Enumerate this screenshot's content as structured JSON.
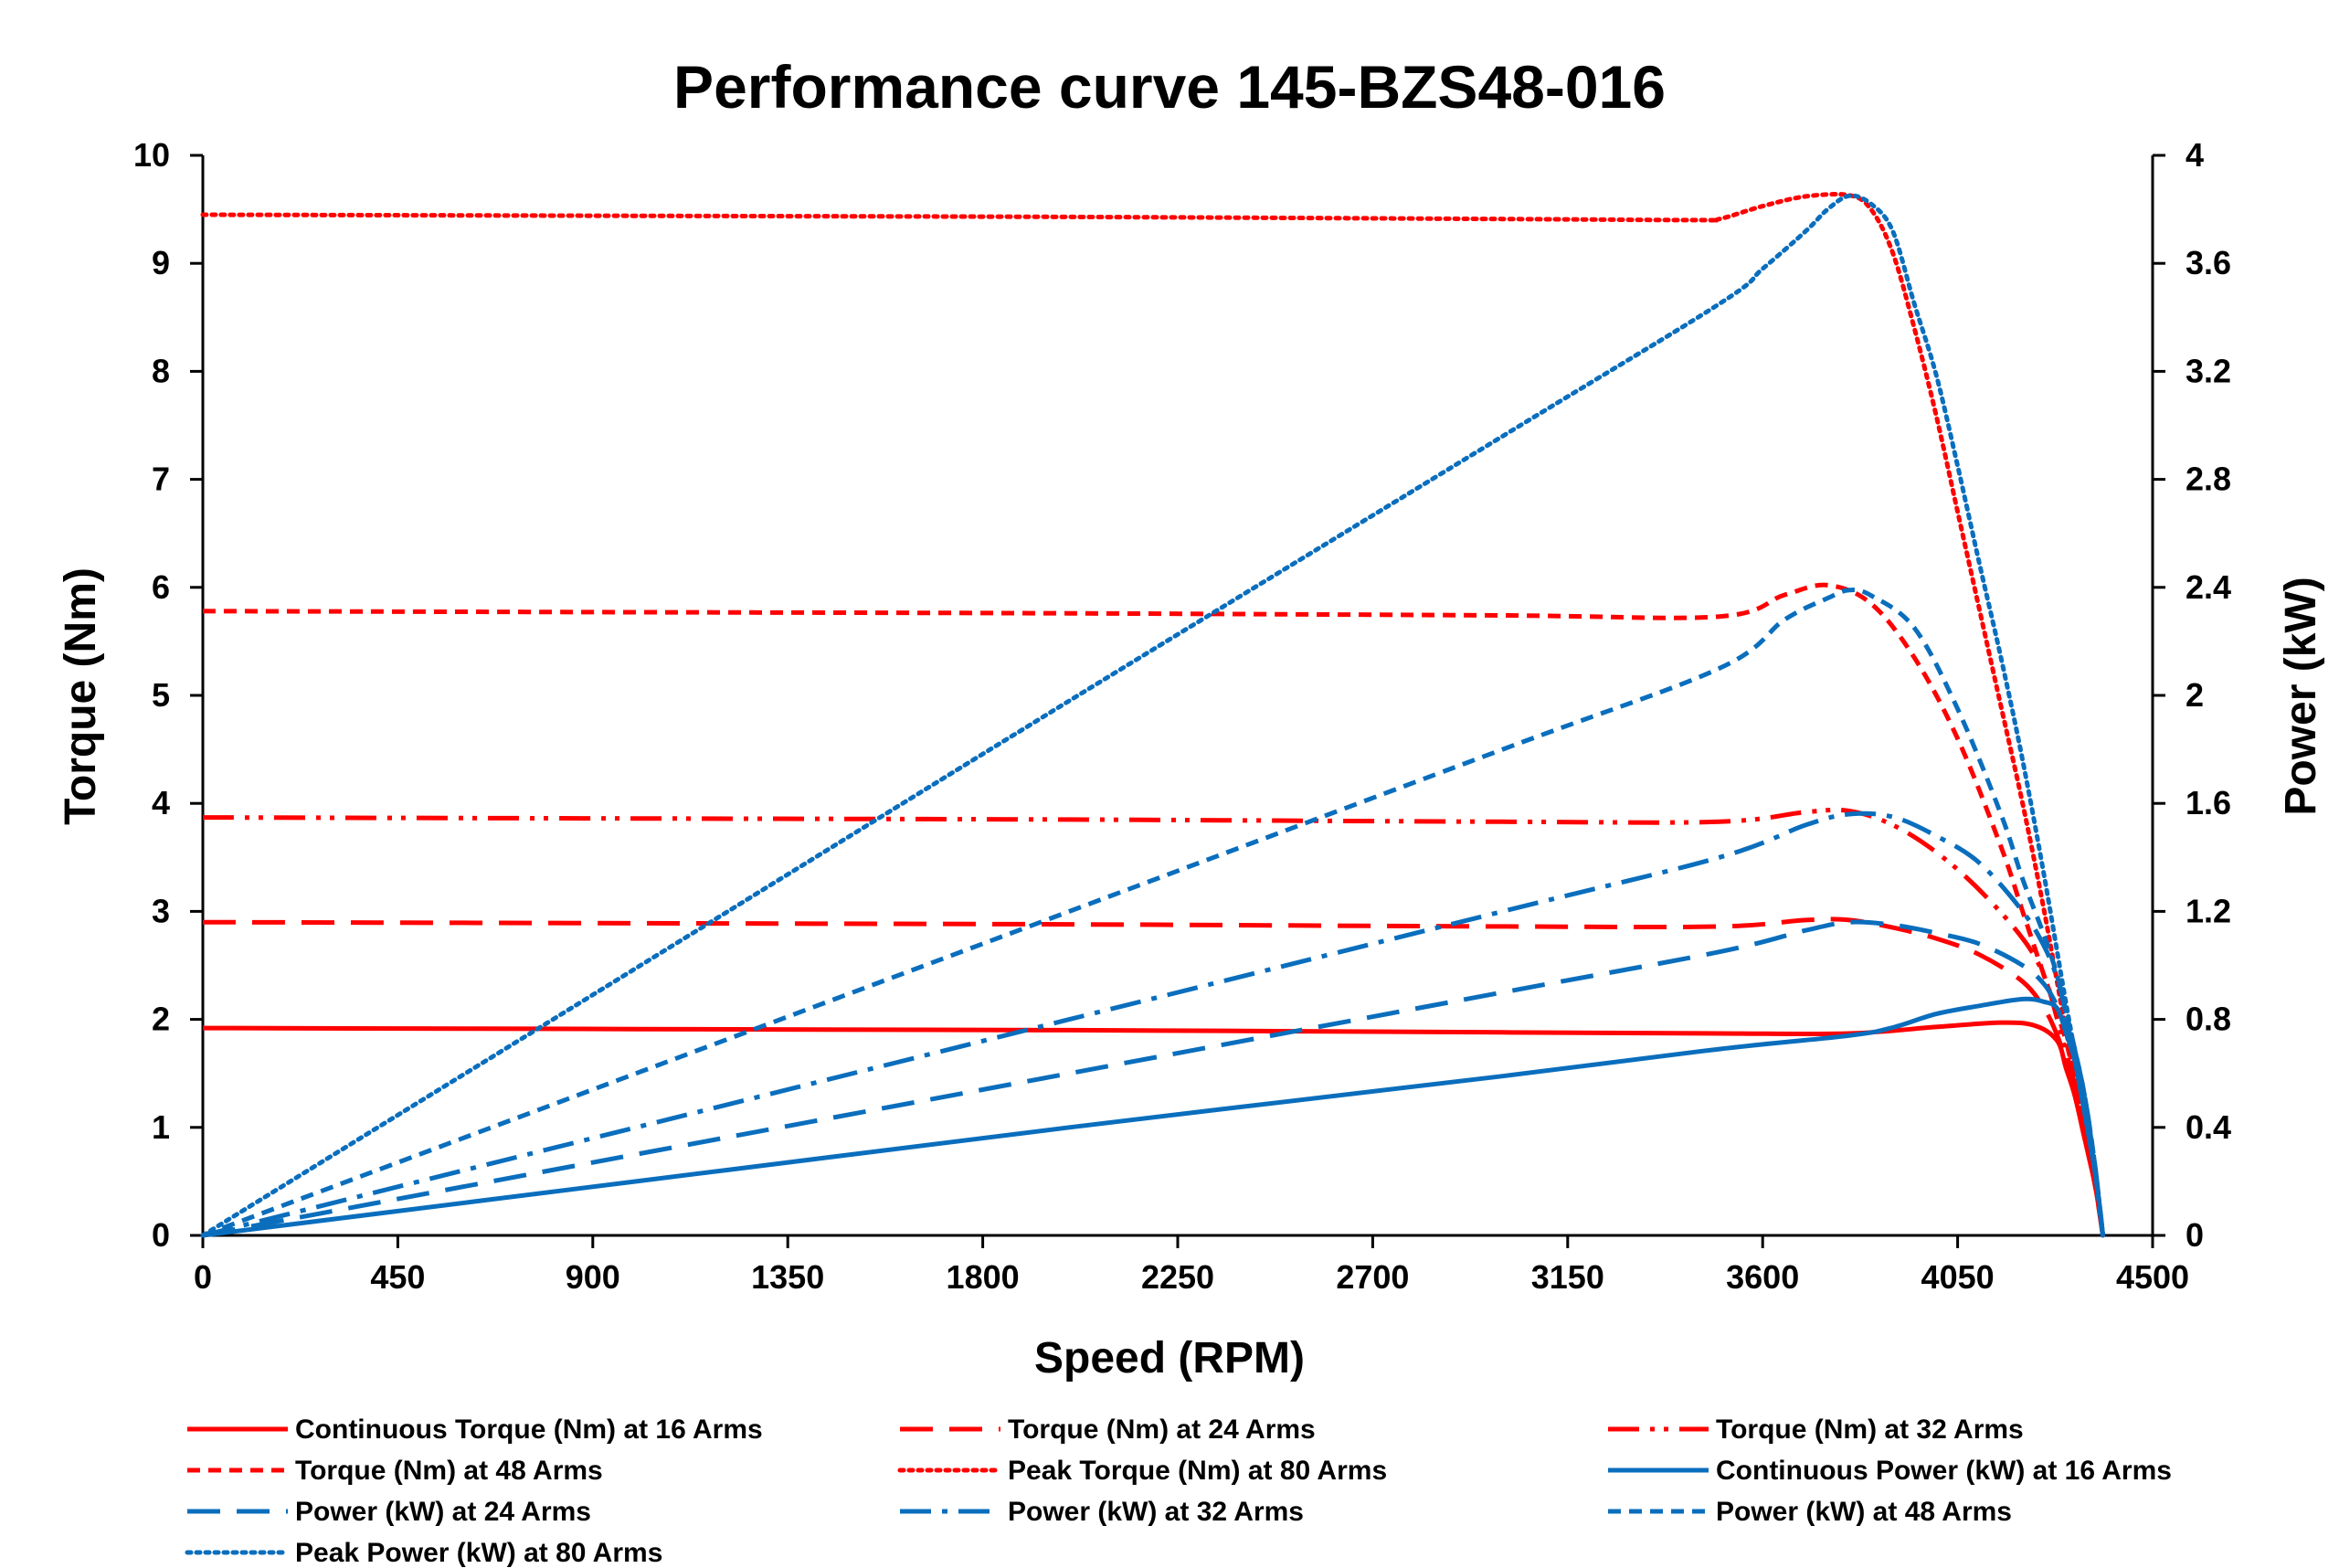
{
  "chart_data": {
    "type": "line",
    "title": "Performance curve 145-BZS48-016",
    "xlabel": "Speed (RPM)",
    "ylabel": "Torque (Nm)",
    "y2label": "Power (kW)",
    "xlim": [
      0,
      4500
    ],
    "ylim": [
      0,
      10
    ],
    "y2lim": [
      0,
      4
    ],
    "xticks": [
      "0",
      "450",
      "900",
      "1350",
      "1800",
      "2250",
      "2700",
      "3150",
      "3600",
      "4050",
      "4500"
    ],
    "yticks": [
      "0",
      "1",
      "2",
      "3",
      "4",
      "5",
      "6",
      "7",
      "8",
      "9",
      "10"
    ],
    "y2ticks": [
      "0",
      "0.4",
      "0.8",
      "1.2",
      "1.6",
      "2",
      "2.4",
      "2.8",
      "3.2",
      "3.6",
      "4"
    ],
    "colors": {
      "torque": "#ff0000",
      "power": "#0a6ebd"
    },
    "legend_position": "bottom",
    "series": [
      {
        "name": "Continuous Torque (Nm) at 16 Arms",
        "axis": "left",
        "color": "torque",
        "style": "solid",
        "x": [
          0,
          1000,
          2000,
          3000,
          3500,
          3800,
          4000,
          4150,
          4230,
          4280,
          4300,
          4320,
          4340,
          4360,
          4370,
          4380,
          4385
        ],
        "y": [
          1.92,
          1.91,
          1.9,
          1.88,
          1.87,
          1.87,
          1.93,
          1.97,
          1.94,
          1.8,
          1.55,
          1.3,
          0.95,
          0.6,
          0.4,
          0.15,
          0
        ]
      },
      {
        "name": "Torque (Nm) at 24 Arms",
        "axis": "left",
        "color": "torque",
        "style": "dash-long",
        "x": [
          0,
          1000,
          2000,
          3000,
          3500,
          3700,
          3800,
          3900,
          4000,
          4100,
          4200,
          4250,
          4280,
          4300,
          4330,
          4350,
          4370,
          4385
        ],
        "y": [
          2.9,
          2.89,
          2.88,
          2.86,
          2.86,
          2.92,
          2.92,
          2.85,
          2.75,
          2.6,
          2.35,
          2.1,
          1.85,
          1.6,
          1.2,
          0.85,
          0.4,
          0
        ]
      },
      {
        "name": "Torque (Nm) at 32 Arms",
        "axis": "left",
        "color": "torque",
        "style": "dash-dot-dot",
        "x": [
          0,
          1000,
          2000,
          3000,
          3500,
          3700,
          3800,
          3900,
          4000,
          4100,
          4200,
          4250,
          4280,
          4300,
          4330,
          4350,
          4370,
          4385
        ],
        "y": [
          3.87,
          3.86,
          3.85,
          3.83,
          3.83,
          3.92,
          3.93,
          3.8,
          3.55,
          3.2,
          2.75,
          2.4,
          2.0,
          1.7,
          1.25,
          0.9,
          0.45,
          0
        ]
      },
      {
        "name": "Torque (Nm) at 48 Arms",
        "axis": "left",
        "color": "torque",
        "style": "dash-short",
        "x": [
          0,
          1000,
          2000,
          3000,
          3500,
          3650,
          3750,
          3850,
          3950,
          4050,
          4150,
          4200,
          4250,
          4280,
          4300,
          4330,
          4350,
          4370,
          4385
        ],
        "y": [
          5.78,
          5.77,
          5.76,
          5.74,
          5.73,
          5.93,
          6.02,
          5.85,
          5.35,
          4.6,
          3.6,
          3.0,
          2.4,
          2.05,
          1.8,
          1.3,
          0.95,
          0.45,
          0
        ]
      },
      {
        "name": "Peak Torque (Nm) at 80 Arms",
        "axis": "left",
        "color": "torque",
        "style": "dot",
        "x": [
          0,
          1000,
          2000,
          3000,
          3450,
          3500,
          3600,
          3700,
          3800,
          3850,
          3900,
          3950,
          4000,
          4050,
          4100,
          4150,
          4200,
          4250,
          4300,
          4330,
          4350,
          4370,
          4385
        ],
        "y": [
          9.45,
          9.44,
          9.43,
          9.41,
          9.4,
          9.41,
          9.53,
          9.62,
          9.63,
          9.5,
          9.1,
          8.4,
          7.6,
          6.7,
          5.8,
          4.9,
          4.0,
          3.0,
          1.9,
          1.3,
          0.95,
          0.45,
          0
        ]
      },
      {
        "name": "Continuous Power (kW) at 16 Arms",
        "axis": "right",
        "color": "power",
        "style": "solid",
        "x": [
          0,
          1000,
          2000,
          3000,
          3500,
          3800,
          3900,
          4000,
          4100,
          4200,
          4250,
          4280,
          4300,
          4320,
          4340,
          4360,
          4370,
          4380,
          4385
        ],
        "y": [
          0,
          0.2,
          0.4,
          0.59,
          0.69,
          0.74,
          0.77,
          0.82,
          0.85,
          0.875,
          0.865,
          0.84,
          0.75,
          0.65,
          0.48,
          0.3,
          0.2,
          0.08,
          0
        ]
      },
      {
        "name": "Power (kW) at 24 Arms",
        "axis": "right",
        "color": "power",
        "style": "dash-long",
        "x": [
          0,
          1000,
          2000,
          3000,
          3500,
          3700,
          3800,
          3900,
          4000,
          4100,
          4200,
          4250,
          4280,
          4300,
          4330,
          4350,
          4370,
          4385
        ],
        "y": [
          0,
          0.3,
          0.6,
          0.9,
          1.05,
          1.13,
          1.16,
          1.15,
          1.12,
          1.08,
          1.0,
          0.93,
          0.85,
          0.79,
          0.62,
          0.45,
          0.2,
          0
        ]
      },
      {
        "name": "Power (kW) at 32 Arms",
        "axis": "right",
        "color": "power",
        "style": "dash-dot",
        "x": [
          0,
          1000,
          2000,
          3000,
          3500,
          3700,
          3800,
          3900,
          4000,
          4100,
          4200,
          4250,
          4280,
          4300,
          4330,
          4350,
          4370,
          4385
        ],
        "y": [
          0,
          0.4,
          0.8,
          1.2,
          1.4,
          1.52,
          1.56,
          1.55,
          1.48,
          1.38,
          1.2,
          1.07,
          0.95,
          0.82,
          0.62,
          0.45,
          0.22,
          0
        ]
      },
      {
        "name": "Power (kW) at 48 Arms",
        "axis": "right",
        "color": "power",
        "style": "dash-short",
        "x": [
          0,
          1000,
          2000,
          3000,
          3500,
          3650,
          3750,
          3800,
          3850,
          3950,
          4050,
          4150,
          4200,
          4250,
          4280,
          4300,
          4330,
          4350,
          4370,
          4385
        ],
        "y": [
          0,
          0.6,
          1.2,
          1.8,
          2.1,
          2.28,
          2.36,
          2.39,
          2.37,
          2.25,
          1.95,
          1.56,
          1.32,
          1.11,
          0.96,
          0.83,
          0.62,
          0.45,
          0.22,
          0
        ]
      },
      {
        "name": "Peak Power (kW) at 80 Arms",
        "axis": "right",
        "color": "power",
        "style": "dot",
        "x": [
          0,
          1000,
          2000,
          3000,
          3500,
          3600,
          3700,
          3750,
          3800,
          3850,
          3900,
          3950,
          4000,
          4050,
          4100,
          4150,
          4200,
          4250,
          4300,
          4330,
          4350,
          4370,
          4385
        ],
        "y": [
          0,
          0.99,
          1.98,
          2.96,
          3.45,
          3.58,
          3.72,
          3.8,
          3.85,
          3.82,
          3.72,
          3.45,
          3.19,
          2.85,
          2.49,
          2.14,
          1.76,
          1.33,
          0.86,
          0.6,
          0.43,
          0.2,
          0
        ]
      }
    ]
  }
}
